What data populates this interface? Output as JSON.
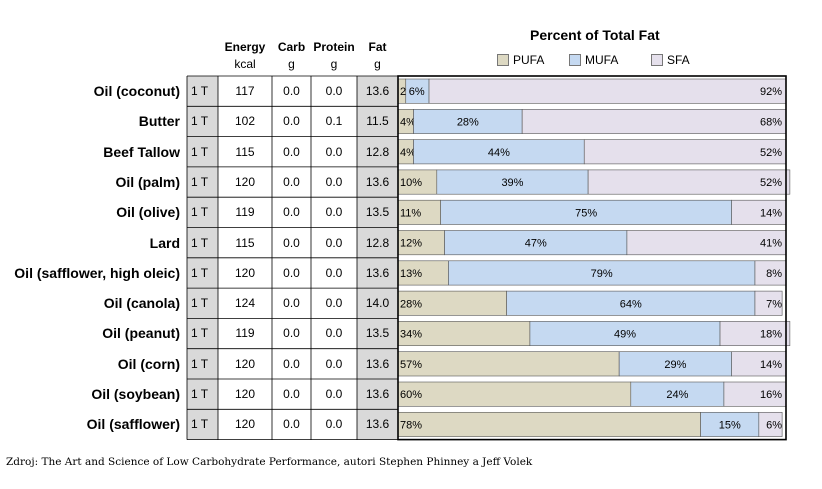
{
  "columns": {
    "energy": "Energy",
    "energy_unit": "kcal",
    "carb": "Carb",
    "carb_unit": "g",
    "protein": "Protein",
    "protein_unit": "g",
    "fat": "Fat",
    "fat_unit": "g"
  },
  "colors": {
    "pufa": "#ddd9c3",
    "mufa": "#c5d9f1",
    "sfa": "#e5e0ec",
    "grey_cell": "#d9d9d9"
  },
  "footer": "Zdroj: The Art and Science of Low Carbohydrate Performance, autori Stephen Phinney a Jeff Volek",
  "chart_data": {
    "type": "bar",
    "stacked": true,
    "orientation": "horizontal",
    "title": "Percent of Total Fat",
    "legend": [
      "PUFA",
      "MUFA",
      "SFA"
    ],
    "legend_position": "top",
    "xlim": [
      0,
      100
    ],
    "categories": [
      "Oil (coconut)",
      "Butter",
      "Beef Tallow",
      "Oil (palm)",
      "Oil (olive)",
      "Lard",
      "Oil (safflower, high oleic)",
      "Oil (canola)",
      "Oil (peanut)",
      "Oil (corn)",
      "Oil (soybean)",
      "Oil (safflower)"
    ],
    "series": [
      {
        "name": "PUFA",
        "values": [
          2,
          4,
          4,
          10,
          11,
          12,
          13,
          28,
          34,
          57,
          60,
          78
        ],
        "labels": [
          "2%",
          "4%",
          "4%",
          "10%",
          "11%",
          "12%",
          "13%",
          "28%",
          "34%",
          "57%",
          "60%",
          "78%"
        ]
      },
      {
        "name": "MUFA",
        "values": [
          6,
          28,
          44,
          39,
          75,
          47,
          79,
          64,
          49,
          29,
          24,
          15
        ],
        "labels": [
          "6%",
          "28%",
          "44%",
          "39%",
          "75%",
          "47%",
          "79%",
          "64%",
          "49%",
          "29%",
          "24%",
          "15%"
        ]
      },
      {
        "name": "SFA",
        "values": [
          92,
          68,
          52,
          52,
          14,
          41,
          8,
          7,
          18,
          14,
          16,
          6
        ],
        "labels": [
          "92%",
          "68%",
          "52%",
          "52%",
          "14%",
          "41%",
          "8%",
          "7%",
          "18%",
          "14%",
          "16%",
          "6%"
        ]
      }
    ]
  },
  "foods": [
    {
      "name": "Oil (coconut)",
      "serving": "1 T",
      "energy": "117",
      "carb": "0.0",
      "protein": "0.0",
      "fat": "13.6"
    },
    {
      "name": "Butter",
      "serving": "1 T",
      "energy": "102",
      "carb": "0.0",
      "protein": "0.1",
      "fat": "11.5"
    },
    {
      "name": "Beef Tallow",
      "serving": "1 T",
      "energy": "115",
      "carb": "0.0",
      "protein": "0.0",
      "fat": "12.8"
    },
    {
      "name": "Oil (palm)",
      "serving": "1 T",
      "energy": "120",
      "carb": "0.0",
      "protein": "0.0",
      "fat": "13.6"
    },
    {
      "name": "Oil (olive)",
      "serving": "1 T",
      "energy": "119",
      "carb": "0.0",
      "protein": "0.0",
      "fat": "13.5"
    },
    {
      "name": "Lard",
      "serving": "1 T",
      "energy": "115",
      "carb": "0.0",
      "protein": "0.0",
      "fat": "12.8"
    },
    {
      "name": "Oil (safflower, high oleic)",
      "serving": "1 T",
      "energy": "120",
      "carb": "0.0",
      "protein": "0.0",
      "fat": "13.6"
    },
    {
      "name": "Oil (canola)",
      "serving": "1 T",
      "energy": "124",
      "carb": "0.0",
      "protein": "0.0",
      "fat": "14.0"
    },
    {
      "name": "Oil (peanut)",
      "serving": "1 T",
      "energy": "119",
      "carb": "0.0",
      "protein": "0.0",
      "fat": "13.5"
    },
    {
      "name": "Oil (corn)",
      "serving": "1 T",
      "energy": "120",
      "carb": "0.0",
      "protein": "0.0",
      "fat": "13.6"
    },
    {
      "name": "Oil (soybean)",
      "serving": "1 T",
      "energy": "120",
      "carb": "0.0",
      "protein": "0.0",
      "fat": "13.6"
    },
    {
      "name": "Oil (safflower)",
      "serving": "1 T",
      "energy": "120",
      "carb": "0.0",
      "protein": "0.0",
      "fat": "13.6"
    }
  ]
}
